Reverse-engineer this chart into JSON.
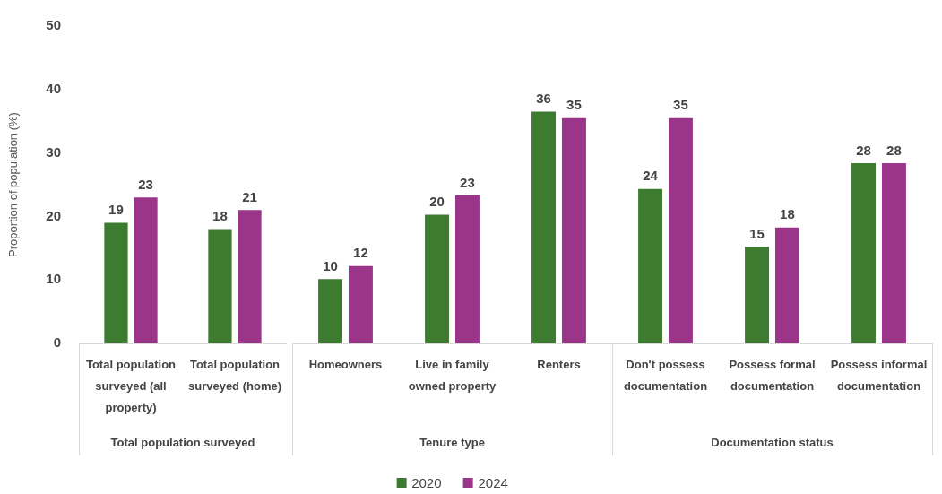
{
  "chart_data": [
    {
      "type": "bar",
      "ylabel": "Proportion of population (%)",
      "xlabel": "Total population surveyed",
      "categories": [
        "Total population surveyed (all property)",
        "Total population surveyed (home)"
      ],
      "series": [
        {
          "color": "#3d7b31",
          "values": [
            19,
            18
          ]
        },
        {
          "color": "#9a3589",
          "values": [
            23,
            21
          ]
        }
      ],
      "ylim": [
        0,
        50
      ],
      "yticks": [
        0,
        10,
        20,
        30,
        40,
        50
      ],
      "data_labels": true
    },
    {
      "type": "bar",
      "xlabel": "Tenure type",
      "categories": [
        "Homeowners",
        "Live in family owned property",
        "Renters"
      ],
      "series": [
        {
          "name": "2020",
          "color": "#3d7b31",
          "values": [
            10,
            20,
            36
          ]
        },
        {
          "name": "2024",
          "color": "#9a3589",
          "values": [
            12,
            23,
            35
          ]
        }
      ],
      "ylim": [
        0,
        50
      ],
      "tick_labels": "x",
      "data_labels": true,
      "legend": "bottom"
    },
    {
      "type": "bar",
      "xlabel": "Documentation status",
      "categories": [
        "Don't possess documentation",
        "Possess formal documentation",
        "Possess informal documentation"
      ],
      "series": [
        {
          "color": "#3d7b31",
          "values": [
            24,
            15,
            28
          ]
        },
        {
          "color": "#9a3589",
          "values": [
            35,
            18,
            28
          ]
        }
      ],
      "ylim": [
        0,
        50
      ],
      "tick_labels": "x",
      "data_labels": true
    }
  ]
}
